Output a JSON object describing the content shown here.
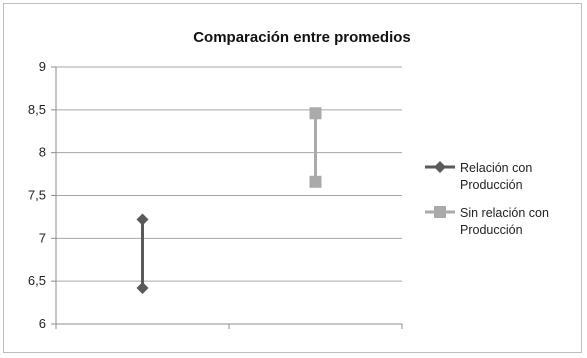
{
  "chart_data": {
    "type": "line",
    "title": "Comparación entre promedios",
    "xlabel": "",
    "ylabel": "",
    "ylim": [
      6,
      9
    ],
    "yticks": [
      "6",
      "6,5",
      "7",
      "7,5",
      "8",
      "8,5",
      "9"
    ],
    "categories": [
      "",
      ""
    ],
    "grid": true,
    "legend_position": "right",
    "series": [
      {
        "name_lines": [
          "Relación con",
          "Producción"
        ],
        "x_index": 0,
        "values": [
          7.22,
          6.42
        ],
        "marker": "diamond",
        "color": "#5a5a5a"
      },
      {
        "name_lines": [
          "Sin relación con",
          "Producción"
        ],
        "x_index": 1,
        "values": [
          8.46,
          7.66
        ],
        "marker": "square",
        "color": "#aaaaaa"
      }
    ]
  }
}
